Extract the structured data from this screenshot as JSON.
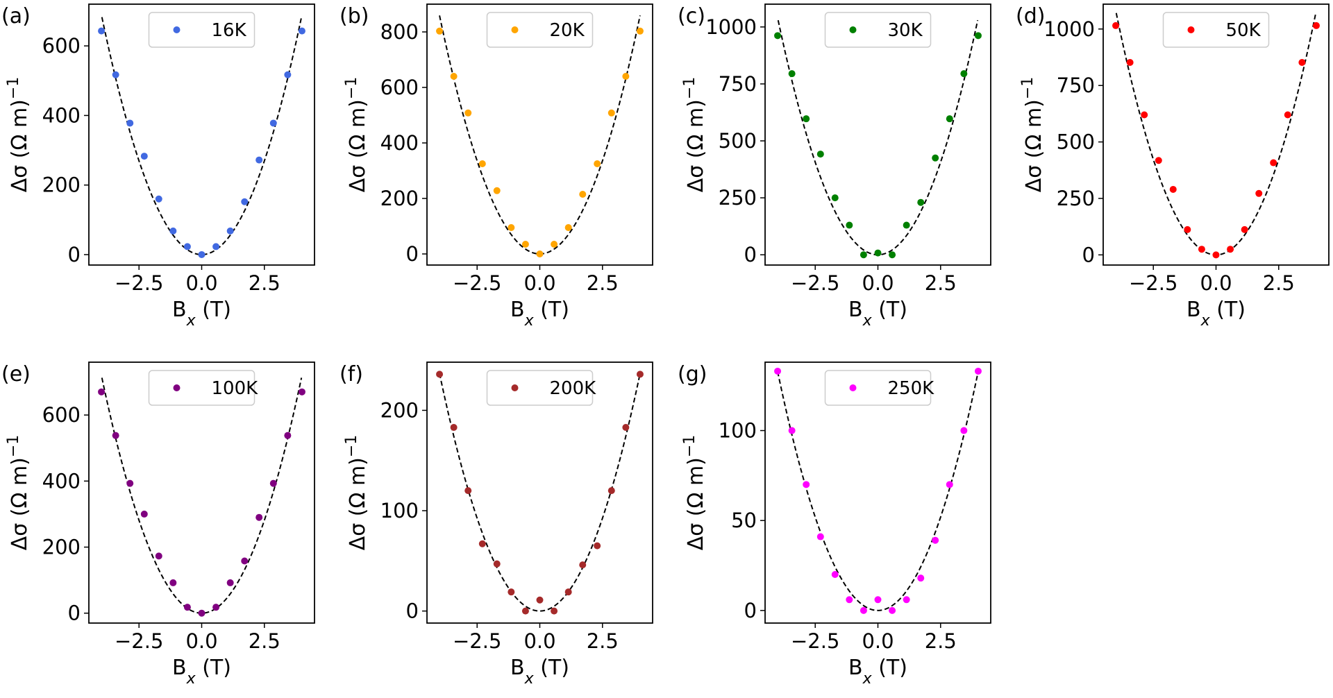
{
  "figure": {
    "xlabel_main": "B",
    "xlabel_sub": "x",
    "xlabel_unit": " (T)",
    "ylabel_main": "Δσ (Ω m)",
    "ylabel_sup": "−1"
  },
  "chart_data": [
    {
      "type": "scatter",
      "letter": "(a)",
      "legend": "16K",
      "color": "#4169e1",
      "xlabel": "B_x (T)",
      "ylabel": "Δσ (Ω m)^-1",
      "xlim": [
        -4.5,
        4.5
      ],
      "ylim": [
        -30,
        720
      ],
      "xticks": [
        -2.5,
        0.0,
        2.5
      ],
      "xtick_labels": [
        "−2.5",
        "0.0",
        "2.5"
      ],
      "yticks": [
        0,
        200,
        400,
        600
      ],
      "ytick_labels": [
        "0",
        "200",
        "400",
        "600"
      ],
      "x": [
        -4.0,
        -3.43,
        -2.86,
        -2.29,
        -1.71,
        -1.14,
        -0.57,
        0.0,
        0.57,
        1.14,
        1.71,
        2.29,
        2.86,
        3.43,
        4.0
      ],
      "y": [
        643,
        517,
        378,
        283,
        160,
        68,
        23,
        0,
        23,
        68,
        152,
        272,
        378,
        517,
        643
      ],
      "fit": {
        "style": "dashed",
        "color": "#000000",
        "coef": 43.1,
        "xmin": -3.98,
        "xmax": 3.98
      }
    },
    {
      "type": "scatter",
      "letter": "(b)",
      "legend": "20K",
      "color": "#ffa500",
      "xlabel": "B_x (T)",
      "ylabel": "Δσ (Ω m)^-1",
      "xlim": [
        -4.5,
        4.5
      ],
      "ylim": [
        -40,
        900
      ],
      "xticks": [
        -2.5,
        0.0,
        2.5
      ],
      "xtick_labels": [
        "−2.5",
        "0.0",
        "2.5"
      ],
      "yticks": [
        0,
        200,
        400,
        600,
        800
      ],
      "ytick_labels": [
        "0",
        "200",
        "400",
        "600",
        "800"
      ],
      "x": [
        -4.0,
        -3.43,
        -2.86,
        -2.29,
        -1.71,
        -1.14,
        -0.57,
        0.0,
        0.57,
        1.14,
        1.71,
        2.29,
        2.86,
        3.43,
        4.0
      ],
      "y": [
        803,
        640,
        508,
        325,
        228,
        95,
        35,
        0,
        35,
        95,
        215,
        325,
        508,
        640,
        803
      ],
      "fit": {
        "style": "dashed",
        "color": "#000000",
        "coef": 53.7,
        "xmin": -4.0,
        "xmax": 4.0
      }
    },
    {
      "type": "scatter",
      "letter": "(c)",
      "legend": "30K",
      "color": "#008000",
      "xlabel": "B_x (T)",
      "ylabel": "Δσ (Ω m)^-1",
      "xlim": [
        -4.5,
        4.5
      ],
      "ylim": [
        -45,
        1100
      ],
      "xticks": [
        -2.5,
        0.0,
        2.5
      ],
      "xtick_labels": [
        "−2.5",
        "0.0",
        "2.5"
      ],
      "yticks": [
        0,
        250,
        500,
        750,
        1000
      ],
      "ytick_labels": [
        "0",
        "250",
        "500",
        "750",
        "1000"
      ],
      "x": [
        -4.0,
        -3.43,
        -2.86,
        -2.29,
        -1.71,
        -1.14,
        -0.57,
        0.0,
        0.57,
        1.14,
        1.71,
        2.29,
        2.86,
        3.43,
        4.0
      ],
      "y": [
        962,
        795,
        597,
        442,
        250,
        130,
        0,
        8,
        0,
        130,
        230,
        425,
        597,
        795,
        962
      ],
      "fit": {
        "style": "dashed",
        "color": "#000000",
        "coef": 65.0,
        "xmin": -3.98,
        "xmax": 3.98
      }
    },
    {
      "type": "scatter",
      "letter": "(d)",
      "legend": "50K",
      "color": "#ff0000",
      "xlabel": "B_x (T)",
      "ylabel": "Δσ (Ω m)^-1",
      "xlim": [
        -4.5,
        4.5
      ],
      "ylim": [
        -45,
        1110
      ],
      "xticks": [
        -2.5,
        0.0,
        2.5
      ],
      "xtick_labels": [
        "−2.5",
        "0.0",
        "2.5"
      ],
      "yticks": [
        0,
        250,
        500,
        750,
        1000
      ],
      "ytick_labels": [
        "0",
        "250",
        "500",
        "750",
        "1000"
      ],
      "x": [
        -4.0,
        -3.43,
        -2.86,
        -2.29,
        -1.71,
        -1.14,
        -0.57,
        0.0,
        0.57,
        1.14,
        1.71,
        2.29,
        2.86,
        3.43,
        4.0
      ],
      "y": [
        1015,
        852,
        620,
        418,
        290,
        112,
        25,
        0,
        25,
        112,
        272,
        408,
        620,
        852,
        1015
      ],
      "fit": {
        "style": "dashed",
        "color": "#000000",
        "coef": 67.6,
        "xmin": -3.98,
        "xmax": 3.98
      }
    },
    {
      "type": "scatter",
      "letter": "(e)",
      "legend": "100K",
      "color": "#800080",
      "xlabel": "B_x (T)",
      "ylabel": "Δσ (Ω m)^-1",
      "xlim": [
        -4.5,
        4.5
      ],
      "ylim": [
        -30,
        760
      ],
      "xticks": [
        -2.5,
        0.0,
        2.5
      ],
      "xtick_labels": [
        "−2.5",
        "0.0",
        "2.5"
      ],
      "yticks": [
        0,
        200,
        400,
        600
      ],
      "ytick_labels": [
        "0",
        "200",
        "400",
        "600"
      ],
      "x": [
        -4.0,
        -3.43,
        -2.86,
        -2.29,
        -1.71,
        -1.14,
        -0.57,
        0.0,
        0.57,
        1.14,
        1.71,
        2.29,
        2.86,
        3.43,
        4.0
      ],
      "y": [
        670,
        538,
        393,
        300,
        173,
        92,
        18,
        0,
        18,
        92,
        158,
        290,
        393,
        538,
        670
      ],
      "fit": {
        "style": "dashed",
        "color": "#000000",
        "coef": 45.0,
        "xmin": -3.98,
        "xmax": 3.98
      }
    },
    {
      "type": "scatter",
      "letter": "(f)",
      "legend": "200K",
      "color": "#a52a2a",
      "xlabel": "B_x (T)",
      "ylabel": "Δσ (Ω m)^-1",
      "xlim": [
        -4.5,
        4.5
      ],
      "ylim": [
        -12,
        248
      ],
      "xticks": [
        -2.5,
        0.0,
        2.5
      ],
      "xtick_labels": [
        "−2.5",
        "0.0",
        "2.5"
      ],
      "yticks": [
        0,
        100,
        200
      ],
      "ytick_labels": [
        "0",
        "100",
        "200"
      ],
      "x": [
        -4.0,
        -3.43,
        -2.86,
        -2.29,
        -1.71,
        -1.14,
        -0.57,
        0.0,
        0.57,
        1.14,
        1.71,
        2.29,
        2.86,
        3.43,
        4.0
      ],
      "y": [
        236,
        183,
        120,
        67,
        47,
        19,
        0,
        11,
        0,
        19,
        46,
        65,
        120,
        183,
        236
      ],
      "fit": {
        "style": "dashed",
        "color": "#000000",
        "coef": 14.8,
        "xmin": -4.0,
        "xmax": 4.0
      }
    },
    {
      "type": "scatter",
      "letter": "(g)",
      "legend": "250K",
      "color": "#ff00ff",
      "xlabel": "B_x (T)",
      "ylabel": "Δσ (Ω m)^-1",
      "xlim": [
        -4.5,
        4.5
      ],
      "ylim": [
        -7,
        138
      ],
      "xticks": [
        -2.5,
        0.0,
        2.5
      ],
      "xtick_labels": [
        "−2.5",
        "0.0",
        "2.5"
      ],
      "yticks": [
        0,
        50,
        100
      ],
      "ytick_labels": [
        "0",
        "50",
        "100"
      ],
      "x": [
        -4.0,
        -3.43,
        -2.86,
        -2.29,
        -1.71,
        -1.14,
        -0.57,
        0.0,
        0.57,
        1.14,
        1.71,
        2.29,
        2.86,
        3.43,
        4.0
      ],
      "y": [
        133,
        100,
        70,
        41,
        20,
        6,
        0,
        6,
        0,
        6,
        18,
        39,
        70,
        100,
        133
      ],
      "fit": {
        "style": "dashed",
        "color": "#000000",
        "coef": 8.3,
        "xmin": -4.0,
        "xmax": 4.0
      }
    }
  ]
}
